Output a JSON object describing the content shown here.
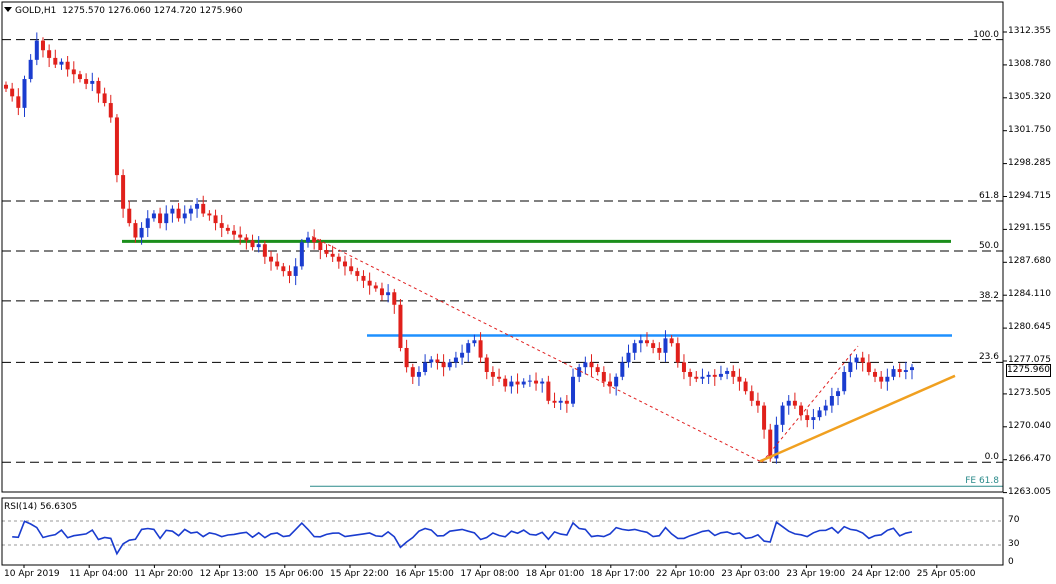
{
  "header": {
    "symbol": "GOLD,H1",
    "ohlc": "1275.570 1276.060 1274.720 1275.960"
  },
  "price_axis": {
    "ticks": [
      "1312.355",
      "1308.780",
      "1305.320",
      "1301.750",
      "1298.285",
      "1294.715",
      "1291.155",
      "1287.680",
      "1284.110",
      "1280.645",
      "1277.075",
      "1273.505",
      "1270.040",
      "1266.470",
      "1263.005"
    ],
    "current_label": "1275.960"
  },
  "fibonacci": {
    "levels": [
      "100.0",
      "61.8",
      "50.0",
      "38.2",
      "23.6",
      "0.0"
    ],
    "extension_label": "FE 61.8"
  },
  "rsi": {
    "title": "RSI(14) 56.6305",
    "ticks": [
      "70",
      "30",
      "0"
    ]
  },
  "time_axis": {
    "labels": [
      "10 Apr 2019",
      "11 Apr 04:00",
      "11 Apr 20:00",
      "12 Apr 13:00",
      "15 Apr 06:00",
      "15 Apr 22:00",
      "16 Apr 15:00",
      "17 Apr 08:00",
      "18 Apr 01:00",
      "18 Apr 17:00",
      "22 Apr 10:00",
      "23 Apr 03:00",
      "23 Apr 19:00",
      "24 Apr 12:00",
      "25 Apr 05:00"
    ]
  },
  "colors": {
    "bull": "#1a3ccf",
    "bear": "#e0201b",
    "support_green": "#1b8e1b",
    "resistance_blue": "#1e90ff",
    "trendline_orange": "#f0a020",
    "fib_diagonal": "#e02020",
    "rsi_line": "#1a3ccf"
  },
  "chart_data": {
    "type": "candlestick",
    "symbol": "GOLD",
    "timeframe": "H1",
    "ylim": [
      1263.005,
      1312.355
    ],
    "last_price": 1275.96,
    "open": 1275.57,
    "high": 1276.06,
    "low": 1274.72,
    "close": 1275.96,
    "fib_levels": [
      {
        "label": "100.0",
        "price": 1310.1
      },
      {
        "label": "61.8",
        "price": 1293.3
      },
      {
        "label": "50.0",
        "price": 1288.1
      },
      {
        "label": "38.2",
        "price": 1282.9
      },
      {
        "label": "23.6",
        "price": 1276.5
      },
      {
        "label": "0.0",
        "price": 1266.1
      },
      {
        "label": "FE 61.8",
        "price": 1263.6
      }
    ],
    "support_line": 1289.1,
    "resistance_line": 1279.3,
    "rsi": {
      "period": 14,
      "value": 56.6305,
      "levels": [
        70,
        30
      ]
    },
    "closes": [
      1305.0,
      1304.2,
      1303.0,
      1306.0,
      1308.0,
      1310.0,
      1309.0,
      1308.2,
      1307.5,
      1307.8,
      1307.0,
      1306.5,
      1306.0,
      1305.5,
      1305.8,
      1304.5,
      1303.5,
      1302.0,
      1296.0,
      1292.5,
      1291.0,
      1289.5,
      1290.5,
      1291.5,
      1292.0,
      1291.0,
      1292.0,
      1292.5,
      1291.5,
      1292.0,
      1292.5,
      1293.0,
      1292.0,
      1291.8,
      1291.0,
      1290.5,
      1290.2,
      1289.8,
      1289.5,
      1289.2,
      1288.5,
      1288.8,
      1287.5,
      1287.0,
      1286.5,
      1286.0,
      1285.5,
      1286.5,
      1289.0,
      1289.5,
      1289.0,
      1288.2,
      1287.8,
      1287.5,
      1287.0,
      1286.5,
      1286.0,
      1285.5,
      1285.0,
      1284.5,
      1284.2,
      1283.5,
      1283.8,
      1282.5,
      1278.0,
      1276.0,
      1275.0,
      1275.5,
      1276.5,
      1276.8,
      1276.5,
      1276.0,
      1276.5,
      1277.0,
      1277.5,
      1278.5,
      1278.8,
      1277.0,
      1275.5,
      1275.0,
      1274.8,
      1274.0,
      1274.5,
      1274.2,
      1274.5,
      1274.6,
      1274.3,
      1274.5,
      1272.5,
      1272.3,
      1272.5,
      1272.2,
      1275.0,
      1276.0,
      1276.5,
      1276.0,
      1275.5,
      1274.5,
      1274.0,
      1275.0,
      1276.5,
      1277.5,
      1278.5,
      1278.8,
      1278.5,
      1278.0,
      1277.5,
      1279.0,
      1278.5,
      1276.5,
      1275.5,
      1275.0,
      1274.8,
      1275.0,
      1275.2,
      1275.0,
      1275.3,
      1275.6,
      1275.0,
      1274.5,
      1273.5,
      1272.5,
      1272.0,
      1269.5,
      1266.5,
      1270.0,
      1272.0,
      1272.5,
      1272.0,
      1271.0,
      1270.5,
      1270.8,
      1271.5,
      1272.0,
      1273.0,
      1273.5,
      1275.5,
      1276.5,
      1277.0,
      1276.5,
      1275.5,
      1275.0,
      1274.5,
      1275.0,
      1275.8,
      1275.5,
      1275.7,
      1276.0
    ]
  }
}
